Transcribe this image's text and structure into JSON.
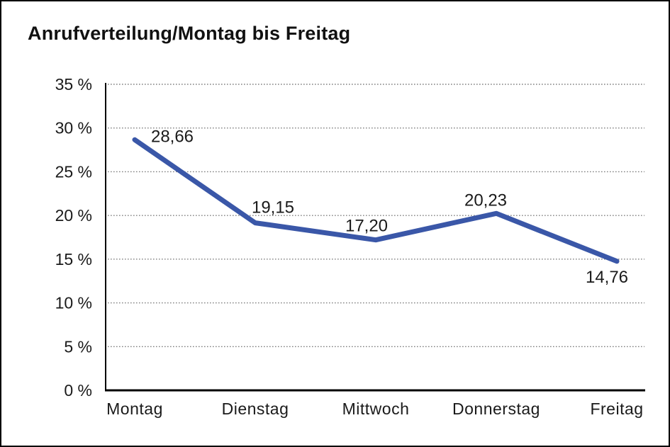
{
  "title": "Anrufverteilung/Montag bis Freitag",
  "chart_data": {
    "type": "line",
    "title": "Anrufverteilung/Montag bis Freitag",
    "categories": [
      "Montag",
      "Dienstag",
      "Mittwoch",
      "Donnerstag",
      "Freitag"
    ],
    "values": [
      28.66,
      19.15,
      17.2,
      20.23,
      14.76
    ],
    "value_labels": [
      "28,66",
      "19,15",
      "17,20",
      "20,23",
      "14,76"
    ],
    "xlabel": "",
    "ylabel": "",
    "ylim": [
      0,
      35
    ],
    "ytick_step": 5,
    "ytick_labels": [
      "0 %",
      "5 %",
      "10 %",
      "15 %",
      "20 %",
      "25 %",
      "30 %",
      "35 %"
    ],
    "grid": "horizontal-dotted",
    "legend": "none"
  },
  "colors": {
    "line": "#3A57A8",
    "grid": "#808080",
    "axis": "#000000",
    "text": "#1a1a1a",
    "background": "#ffffff",
    "border": "#000000"
  }
}
